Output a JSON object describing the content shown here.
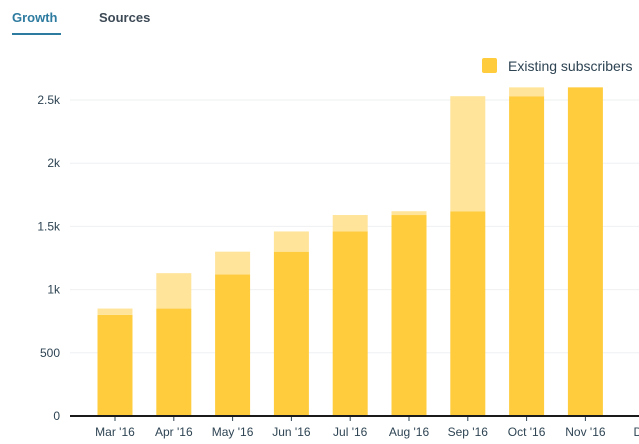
{
  "tabs": [
    {
      "label": "Growth",
      "active": true
    },
    {
      "label": "Sources",
      "active": false
    }
  ],
  "colors": {
    "existing": "#ffcc3e",
    "new": "#ffe49a",
    "accent": "#2e7ba0"
  },
  "chart_data": {
    "type": "bar",
    "stacked": true,
    "categories": [
      "Mar '16",
      "Apr '16",
      "May '16",
      "Jun '16",
      "Jul '16",
      "Aug '16",
      "Sep '16",
      "Oct '16",
      "Nov '16",
      "Dec"
    ],
    "series": [
      {
        "name": "Existing subscribers",
        "values": [
          800,
          850,
          1120,
          1300,
          1460,
          1590,
          1620,
          2530,
          2600,
          null
        ]
      },
      {
        "values": [
          50,
          280,
          180,
          160,
          130,
          30,
          910,
          70,
          0,
          null
        ]
      }
    ],
    "y_ticks": [
      0,
      500,
      1000,
      1500,
      2000,
      2500
    ],
    "y_tick_labels": [
      "0",
      "500",
      "1k",
      "1.5k",
      "2k",
      "2.5k"
    ],
    "ylim": [
      0,
      2700
    ],
    "grid": true,
    "legend": "top-right"
  }
}
